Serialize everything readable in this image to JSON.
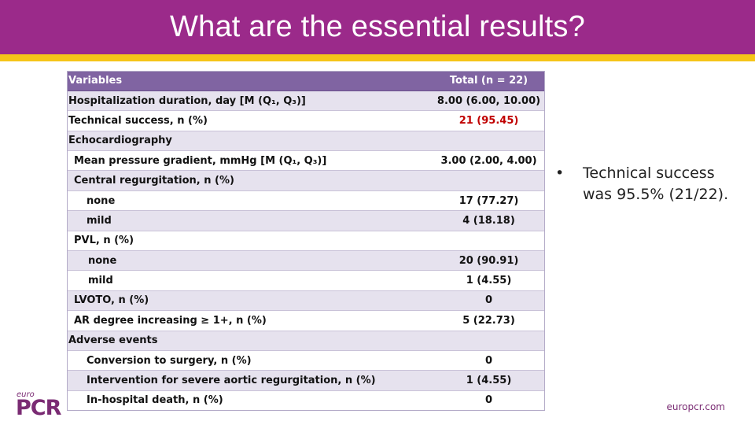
{
  "slide": {
    "title": "What are the essential results?"
  },
  "table": {
    "headers": [
      "Variables",
      "Total (n = 22)"
    ],
    "rows": [
      {
        "label": "Hospitalization duration, day [M (Q₁, Q₃)]",
        "value": "8.00 (6.00, 10.00)"
      },
      {
        "label": "Technical success, n (%)",
        "value": "21 (95.45)"
      },
      {
        "label": "Echocardiography",
        "value": ""
      },
      {
        "label": "Mean pressure gradient, mmHg [M (Q₁, Q₃)]",
        "value": "3.00 (2.00, 4.00)"
      },
      {
        "label": "Central regurgitation, n (%)",
        "value": ""
      },
      {
        "label": "none",
        "value": "17 (77.27)"
      },
      {
        "label": "mild",
        "value": "4 (18.18)"
      },
      {
        "label": "PVL, n (%)",
        "value": ""
      },
      {
        "label": "none",
        "value": "20 (90.91)"
      },
      {
        "label": "mild",
        "value": "1 (4.55)"
      },
      {
        "label": "LVOTO, n (%)",
        "value": "0"
      },
      {
        "label": "AR degree increasing ≥ 1+, n (%)",
        "value": "5 (22.73)"
      },
      {
        "label": "Adverse events",
        "value": ""
      },
      {
        "label": "Conversion to surgery, n (%)",
        "value": "0"
      },
      {
        "label": "Intervention for severe aortic regurgitation, n (%)",
        "value": "1 (4.55)"
      },
      {
        "label": "In-hospital death, n (%)",
        "value": "0"
      }
    ],
    "highlight_color": "#c00000"
  },
  "bullet": {
    "symbol": "•",
    "text": "Technical success was 95.5% (21/22)."
  },
  "footer": {
    "logo_small": "euro",
    "logo_main": "PCR",
    "url": "europcr.com"
  },
  "colors": {
    "header": "#9b2a8a",
    "stripe": "#f5c518",
    "table_header": "#8064a2",
    "row_band": "#e6e2ee"
  }
}
